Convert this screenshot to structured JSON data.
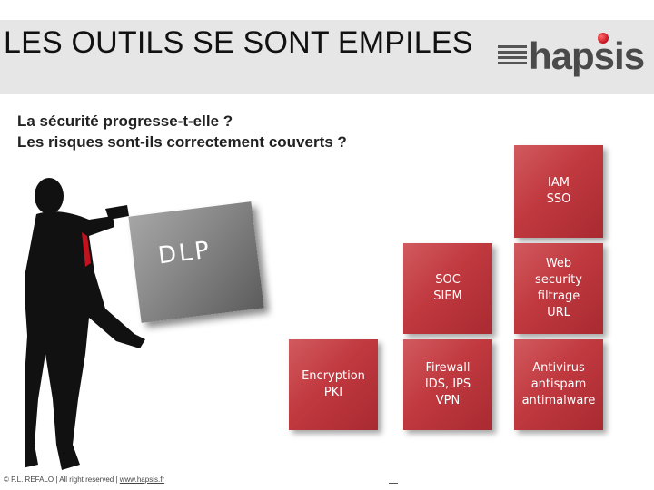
{
  "header": {
    "title": "LES OUTILS SE SONT EMPILES",
    "logo_text": "hapsis",
    "logo_icon": "hapsis-logo"
  },
  "subtitle": {
    "line1": "La sécurité progresse-t-elle ?",
    "line2": "Les risques sont-ils correctement couverts ?"
  },
  "dlp_label": "DLP",
  "boxes": {
    "iam": "IAM\nSSO",
    "soc": "SOC\nSIEM",
    "web": "Web\nsecurity\nfiltrage\nURL",
    "encryption": "Encryption\nPKI",
    "firewall": "Firewall\nIDS, IPS\nVPN",
    "antivirus": "Antivirus\nantispam\nantimalware"
  },
  "footer": {
    "text": "© P.L. REFALO | All right reserved | ",
    "link": "www.hapsis.fr"
  },
  "colors": {
    "box_red": "#c0393f",
    "dlp_gray": "#8a8a8a",
    "header_bg": "#e6e6e6"
  }
}
